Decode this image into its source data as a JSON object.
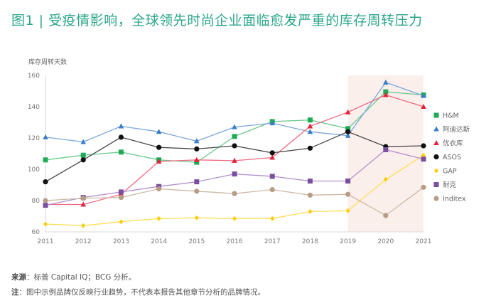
{
  "title": "图1 | 受疫情影响，全球领先时尚企业面临愈发严重的库存周转压力",
  "notes": {
    "source_label": "来源",
    "source_text": "：标普 Capital IQ；BCG 分析。",
    "note_label": "注",
    "note_text": "：图中示例品牌仅反映行业趋势，不代表本报告其他章节分析的品牌情况。"
  },
  "chart_data": {
    "type": "line",
    "title": "图1 | 受疫情影响，全球领先时尚企业面临愈发严重的库存周转压力",
    "ylabel": "库存周转天数",
    "xlabel": "",
    "x": [
      "2011",
      "2012",
      "2013",
      "2014",
      "2015",
      "2016",
      "2017",
      "2018",
      "2019",
      "2020",
      "2021"
    ],
    "ylim": [
      60,
      160
    ],
    "yticks": [
      60,
      80,
      100,
      120,
      140,
      160
    ],
    "grid": false,
    "legend_position": "right",
    "highlight_range": [
      "2019",
      "2021"
    ],
    "highlight_color": "#fbefec",
    "series": [
      {
        "name": "H&M",
        "marker": "square",
        "color": "#1fab55",
        "line": "#6cc98e",
        "values": [
          106,
          109,
          111,
          106,
          104.5,
          121,
          130.5,
          131.5,
          126,
          149.5,
          147.5
        ]
      },
      {
        "name": "阿迪达斯",
        "marker": "triangle",
        "color": "#3a7cc8",
        "line": "#7aa6dc",
        "values": [
          120.5,
          117.5,
          127.5,
          124,
          118,
          127,
          129.5,
          124,
          121.5,
          155.5,
          147
        ]
      },
      {
        "name": "优衣库",
        "marker": "triangle",
        "color": "#e3233b",
        "line": "#ef6a80",
        "values": [
          77.5,
          77.5,
          84,
          105,
          106,
          105.5,
          107.5,
          127.5,
          136.5,
          147.5,
          140
        ]
      },
      {
        "name": "ASOS",
        "marker": "circle",
        "color": "#111111",
        "line": "#444444",
        "values": [
          92,
          106,
          120.5,
          114,
          113,
          115,
          110.5,
          113.5,
          124,
          114.5,
          115
        ]
      },
      {
        "name": "GAP",
        "marker": "diamond",
        "color": "#ffcc00",
        "line": "#ffdf55",
        "values": [
          65,
          64,
          66.5,
          68.5,
          69,
          68.5,
          68.5,
          73,
          73.5,
          93.5,
          109
        ]
      },
      {
        "name": "耐克",
        "marker": "square",
        "color": "#7b4fa0",
        "line": "#b08fcc",
        "values": [
          77,
          82,
          85.5,
          89,
          92,
          97,
          95.5,
          92.5,
          92.5,
          112.5,
          106.5
        ]
      },
      {
        "name": "Inditex",
        "marker": "circle",
        "color": "#b89d85",
        "line": "#cdb8a6",
        "values": [
          80,
          81.5,
          82,
          87.5,
          86,
          84.5,
          87,
          83.5,
          84,
          70.5,
          88.5
        ]
      }
    ]
  }
}
